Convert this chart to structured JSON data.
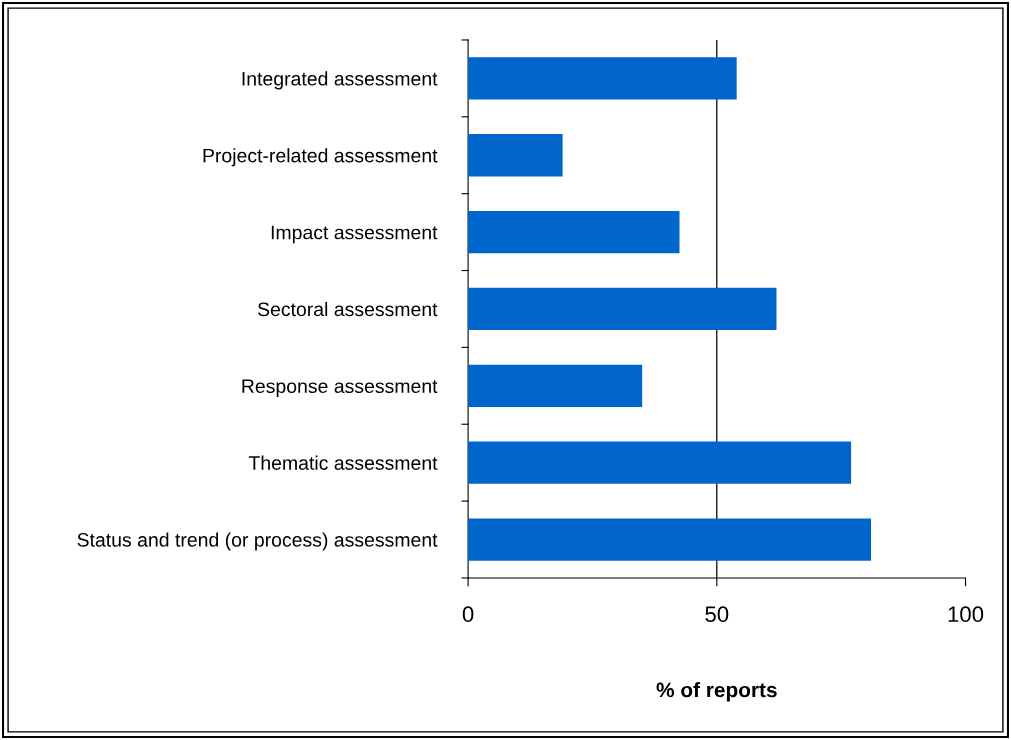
{
  "chart_data": {
    "type": "bar",
    "orientation": "horizontal",
    "xlabel": "% of reports",
    "categories": [
      "Integrated assessment",
      "Project-related assessment",
      "Impact assessment",
      "Sectoral assessment",
      "Response assessment",
      "Thematic assessment",
      "Status and trend (or process) assessment"
    ],
    "values": [
      54,
      19,
      42.5,
      62,
      35,
      77,
      81
    ],
    "color": "#0066cc",
    "xlim": [
      0,
      100
    ],
    "xticks": [
      0,
      50,
      100
    ],
    "grid": "x"
  }
}
